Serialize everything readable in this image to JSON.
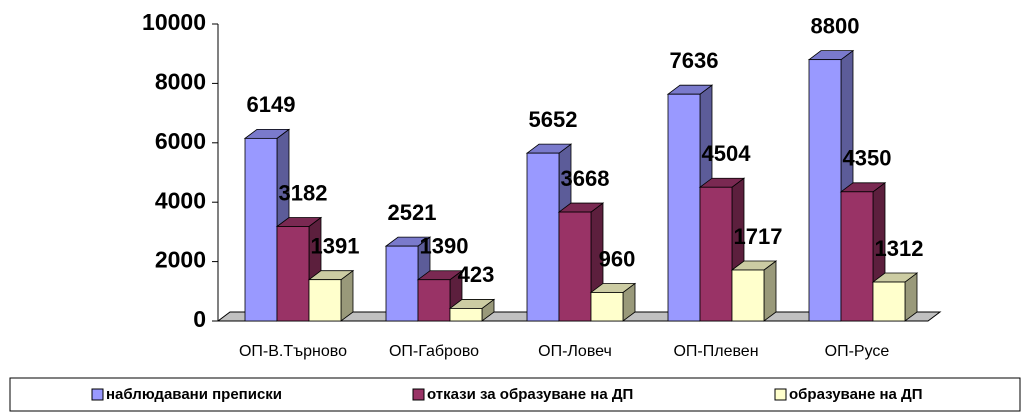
{
  "chart_data": {
    "type": "bar3d",
    "categories": [
      "ОП-В.Търново",
      "ОП-Габрово",
      "ОП-Ловеч",
      "ОП-Плевен",
      "ОП-Русе"
    ],
    "series": [
      {
        "name": "наблюдавани преписки",
        "color": "#9999ff",
        "values": [
          6149,
          2521,
          5652,
          7636,
          8800
        ]
      },
      {
        "name": "откази за образуване на ДП",
        "color": "#993366",
        "values": [
          3182,
          1390,
          3668,
          4504,
          4350
        ]
      },
      {
        "name": "образуване на ДП",
        "color": "#ffffcc",
        "values": [
          1391,
          423,
          960,
          1717,
          1312
        ]
      }
    ],
    "ylim": [
      0,
      10000
    ],
    "yticks": [
      0,
      2000,
      4000,
      6000,
      8000,
      10000
    ],
    "legend": "bottom"
  }
}
